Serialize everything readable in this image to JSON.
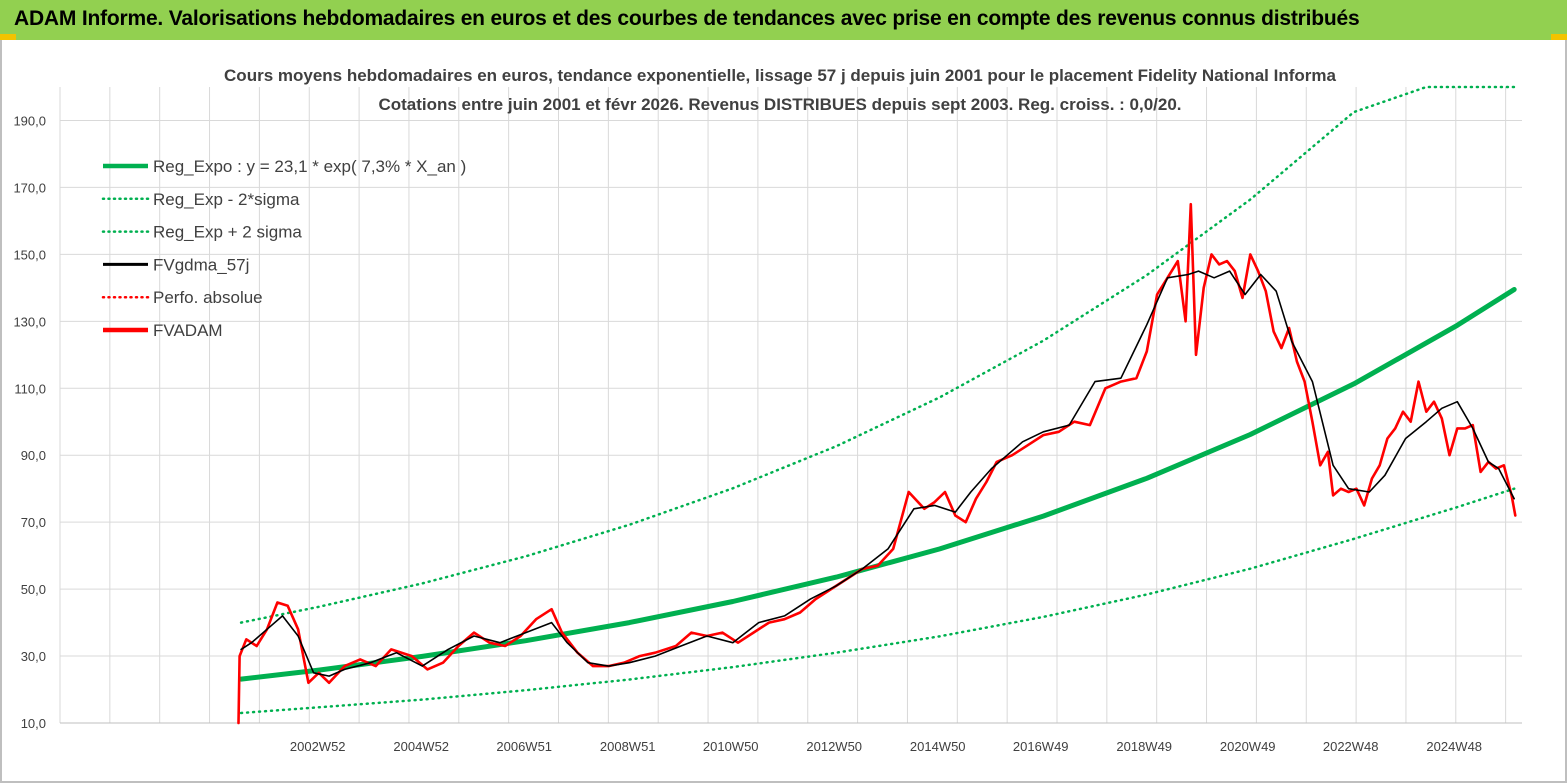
{
  "banner": {
    "title": "ADAM Informe. Valorisations hebdomadaires en euros et des courbes de tendances avec prise en compte des revenus connus distribués"
  },
  "colors": {
    "banner_bg": "#92d050",
    "banner_accent": "#f2c300",
    "reg_green": "#00b050",
    "fvadam_red": "#ff0000",
    "gdma_black": "#000000",
    "grid": "#d9d9d9"
  },
  "chart_data": {
    "type": "line",
    "title_lines": [
      "Cours moyens hebdomadaires en euros, tendance exponentielle, lissage 57 j depuis juin 2001 pour le placement Fidelity National Informa",
      "Cotations entre juin 2001 et févr 2026. Revenus DISTRIBUES depuis sept 2003. Reg. croiss. : 0,0/20."
    ],
    "y_ticks": [
      "190,0",
      "170,0",
      "150,0",
      "130,0",
      "110,0",
      "90,0",
      "70,0",
      "50,0",
      "30,0",
      "10,0"
    ],
    "ylim": [
      10,
      200
    ],
    "x_ticks": [
      "2002W52",
      "2004W52",
      "2006W51",
      "2008W51",
      "2010W50",
      "2012W50",
      "2014W50",
      "2016W49",
      "2018W49",
      "2020W49",
      "2022W48",
      "2024W48"
    ],
    "x_tick_years": [
      2002.98,
      2004.98,
      2006.97,
      2008.97,
      2010.96,
      2012.96,
      2014.96,
      2016.95,
      2018.95,
      2020.95,
      2022.94,
      2024.94
    ],
    "xlim": [
      1998.0,
      2026.25
    ],
    "grid": "vertical+horizontal",
    "legend_position": "top-left",
    "legend": [
      {
        "name": "Reg_Expo : y = 23,1 * exp( 7,3% *  X_an )",
        "color": "#00b050",
        "style": "solid-thick"
      },
      {
        "name": "Reg_Exp - 2*sigma",
        "color": "#00b050",
        "style": "dotted"
      },
      {
        "name": "Reg_Exp + 2 sigma",
        "color": "#00b050",
        "style": "dotted"
      },
      {
        "name": "FVgdma_57j",
        "color": "#000000",
        "style": "solid"
      },
      {
        "name": "Perfo. absolue",
        "color": "#ff0000",
        "style": "dotted"
      },
      {
        "name": "FVADAM",
        "color": "#ff0000",
        "style": "solid-thick"
      }
    ],
    "series": {
      "reg_expo": {
        "x": [
          2001.5,
          2003,
          2005,
          2007,
          2009,
          2011,
          2013,
          2015,
          2017,
          2019,
          2021,
          2023,
          2025,
          2026.1
        ],
        "y": [
          23.1,
          25.8,
          29.9,
          34.6,
          40.0,
          46.3,
          53.6,
          62.0,
          71.8,
          83.1,
          96.2,
          111.3,
          128.8,
          139.5
        ]
      },
      "reg_minus_2sigma": {
        "x": [
          2001.5,
          2003,
          2005,
          2007,
          2009,
          2011,
          2013,
          2015,
          2017,
          2019,
          2021,
          2023,
          2025,
          2026.1
        ],
        "y": [
          13.0,
          14.7,
          17.0,
          19.8,
          23.0,
          26.7,
          31.0,
          35.9,
          41.7,
          48.4,
          56.1,
          65.0,
          74.5,
          80.0
        ]
      },
      "reg_plus_2sigma": {
        "x": [
          2001.5,
          2003,
          2005,
          2007,
          2009,
          2011,
          2013,
          2015,
          2017,
          2019,
          2021,
          2023,
          2024.4,
          2026.1
        ],
        "y": [
          40.0,
          44.7,
          51.7,
          59.8,
          69.2,
          80.1,
          92.7,
          107.3,
          124.2,
          143.8,
          166.4,
          192.5,
          200.0,
          200.0
        ]
      },
      "fvgdma_57j": {
        "x": [
          2001.5,
          2001.7,
          2002.0,
          2002.3,
          2002.6,
          2002.9,
          2003.2,
          2003.5,
          2004.0,
          2004.5,
          2005.0,
          2005.5,
          2006.0,
          2006.5,
          2007.0,
          2007.5,
          2007.8,
          2008.2,
          2008.6,
          2009.0,
          2009.5,
          2010.0,
          2010.5,
          2011.0,
          2011.5,
          2012.0,
          2012.5,
          2013.0,
          2013.5,
          2014.0,
          2014.5,
          2014.9,
          2015.3,
          2015.6,
          2016.0,
          2016.3,
          2016.6,
          2017.0,
          2017.5,
          2018.0,
          2018.5,
          2019.0,
          2019.4,
          2019.8,
          2020.0,
          2020.3,
          2020.6,
          2020.9,
          2021.2,
          2021.5,
          2021.8,
          2022.2,
          2022.6,
          2022.9,
          2023.3,
          2023.6,
          2024.0,
          2024.4,
          2024.7,
          2025.0,
          2025.3,
          2025.6,
          2025.8,
          2026.1
        ],
        "y": [
          32,
          34,
          38,
          42,
          36,
          25,
          24,
          26,
          28,
          31,
          27,
          32,
          36,
          34,
          37,
          40,
          34,
          28,
          27,
          28,
          30,
          33,
          36,
          34,
          40,
          42,
          47,
          51,
          56,
          62,
          74,
          75,
          73,
          79,
          86,
          90,
          94,
          97,
          99,
          112,
          113,
          129,
          143,
          144,
          145,
          143,
          145,
          138,
          144,
          139,
          124,
          112,
          87,
          80,
          79,
          84,
          95,
          100,
          104,
          106,
          98,
          88,
          86,
          77
        ]
      },
      "fvadam": {
        "x": [
          2001.45,
          2001.47,
          2001.6,
          2001.8,
          2002.0,
          2002.2,
          2002.4,
          2002.6,
          2002.8,
          2003.0,
          2003.2,
          2003.5,
          2003.8,
          2004.1,
          2004.4,
          2004.8,
          2005.1,
          2005.4,
          2005.7,
          2006.0,
          2006.3,
          2006.6,
          2006.9,
          2007.2,
          2007.5,
          2007.7,
          2008.0,
          2008.3,
          2008.6,
          2008.9,
          2009.2,
          2009.5,
          2009.9,
          2010.2,
          2010.5,
          2010.8,
          2011.1,
          2011.4,
          2011.7,
          2012.0,
          2012.3,
          2012.6,
          2012.9,
          2013.2,
          2013.5,
          2013.8,
          2014.1,
          2014.4,
          2014.7,
          2014.9,
          2015.1,
          2015.3,
          2015.5,
          2015.7,
          2015.9,
          2016.1,
          2016.4,
          2016.7,
          2017.0,
          2017.3,
          2017.6,
          2017.9,
          2018.2,
          2018.5,
          2018.8,
          2019.0,
          2019.2,
          2019.4,
          2019.6,
          2019.75,
          2019.85,
          2019.95,
          2020.1,
          2020.25,
          2020.4,
          2020.55,
          2020.7,
          2020.85,
          2021.0,
          2021.15,
          2021.3,
          2021.45,
          2021.6,
          2021.75,
          2021.9,
          2022.05,
          2022.2,
          2022.35,
          2022.5,
          2022.6,
          2022.75,
          2022.9,
          2023.05,
          2023.2,
          2023.35,
          2023.5,
          2023.65,
          2023.8,
          2023.95,
          2024.1,
          2024.25,
          2024.4,
          2024.55,
          2024.7,
          2024.85,
          2025.0,
          2025.15,
          2025.3,
          2025.45,
          2025.6,
          2025.75,
          2025.9,
          2026.05,
          2026.12
        ],
        "y": [
          10,
          30,
          35,
          33,
          38,
          46,
          45,
          38,
          22,
          25,
          22,
          27,
          29,
          27,
          32,
          30,
          26,
          28,
          33,
          37,
          34,
          33,
          36,
          41,
          44,
          37,
          31,
          27,
          27,
          28,
          30,
          31,
          33,
          37,
          36,
          37,
          34,
          37,
          40,
          41,
          43,
          47,
          50,
          53,
          56,
          57,
          62,
          79,
          74,
          76,
          79,
          72,
          70,
          77,
          82,
          88,
          90,
          93,
          96,
          97,
          100,
          99,
          110,
          112,
          113,
          121,
          138,
          143,
          148,
          130,
          165,
          120,
          140,
          150,
          147,
          148,
          145,
          137,
          150,
          145,
          139,
          127,
          122,
          128,
          118,
          112,
          100,
          87,
          91,
          78,
          80,
          79,
          80,
          75,
          83,
          87,
          95,
          98,
          103,
          100,
          112,
          103,
          106,
          101,
          90,
          98,
          98,
          99,
          85,
          88,
          86,
          87,
          78,
          72
        ]
      }
    }
  }
}
